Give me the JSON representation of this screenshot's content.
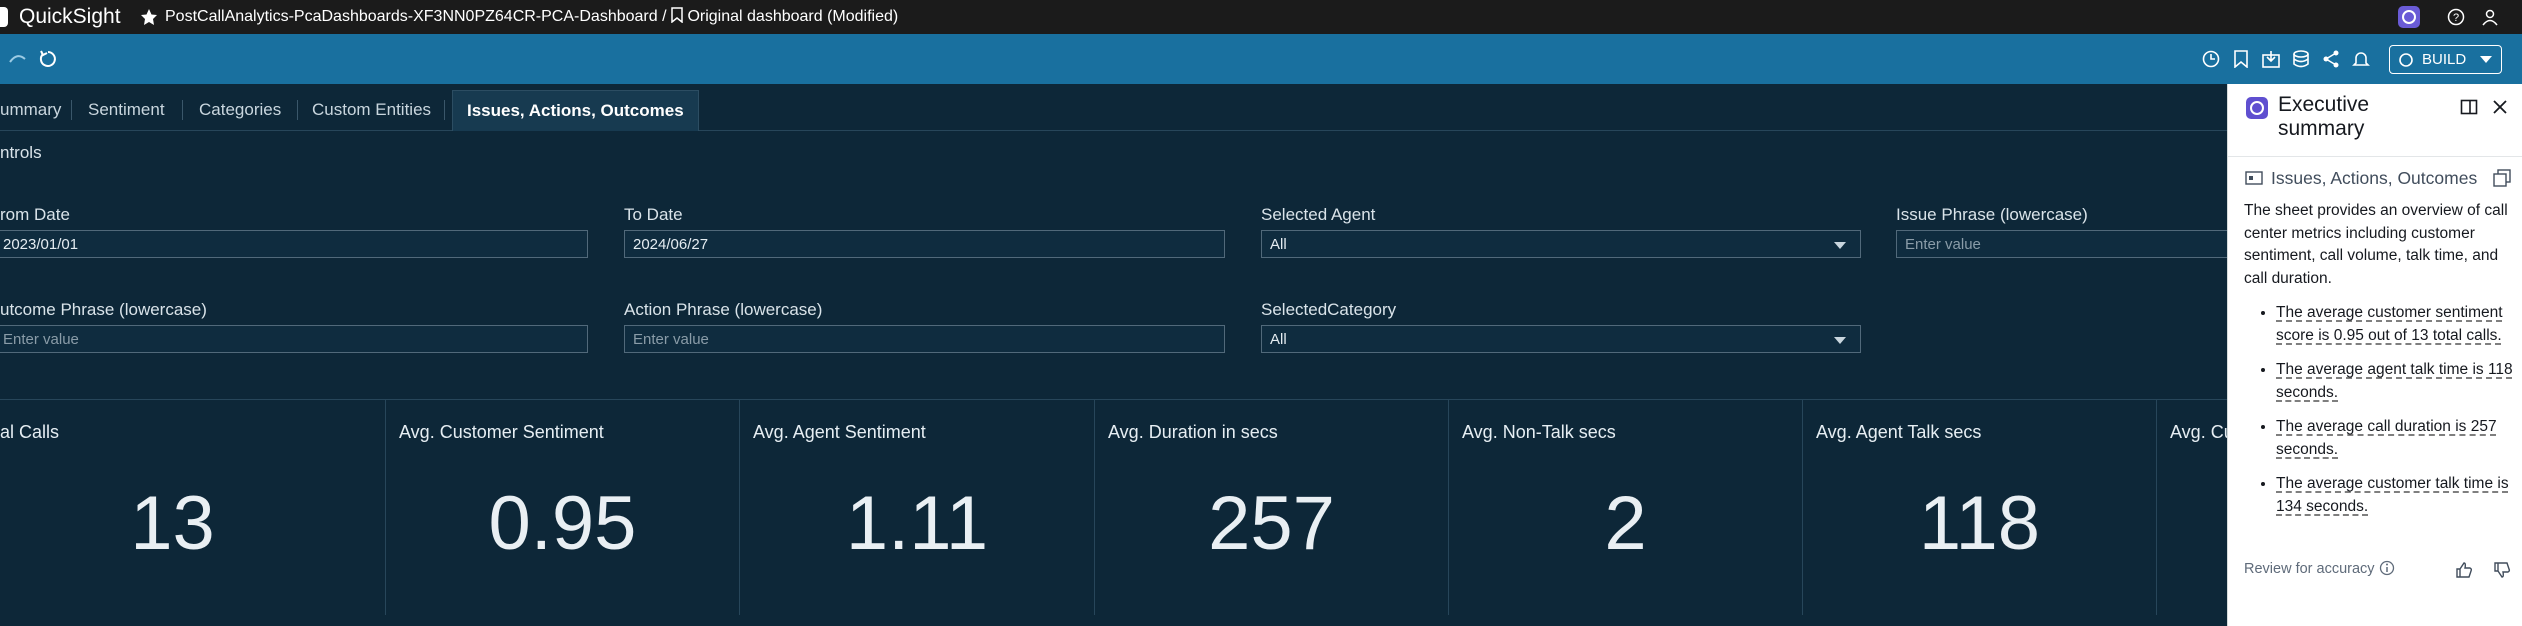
{
  "top_bar": {
    "app_name": "QuickSight",
    "dashboard": "PostCallAnalytics-PcaDashboards-XF3NN0PZ64CR-PCA-Dashboard",
    "separator": "/",
    "sheet": "Original dashboard (Modified)"
  },
  "toolbar": {
    "build_button": "BUILD"
  },
  "tabs": [
    "ummary",
    "Sentiment",
    "Categories",
    "Custom Entities",
    "Issues, Actions, Outcomes"
  ],
  "controls": {
    "title": "ntrols",
    "filters": [
      {
        "label": "rom Date",
        "value": "2023/01/01"
      },
      {
        "label": "To Date",
        "value": "2024/06/27"
      },
      {
        "label": "Selected Agent",
        "value": "All"
      },
      {
        "label": "Issue Phrase (lowercase)",
        "placeholder": "Enter value"
      },
      {
        "label": "utcome Phrase (lowercase)",
        "placeholder": "Enter value"
      },
      {
        "label": "Action Phrase (lowercase)",
        "placeholder": "Enter value"
      },
      {
        "label": "SelectedCategory",
        "value": "All"
      }
    ]
  },
  "kpis": [
    {
      "title": "al Calls",
      "value": 13
    },
    {
      "title": "Avg. Customer Sentiment",
      "value": 0.95
    },
    {
      "title": "Avg. Agent Sentiment",
      "value": 1.11
    },
    {
      "title": "Avg. Duration in secs",
      "value": 257
    },
    {
      "title": "Avg. Non-Talk secs",
      "value": 2
    },
    {
      "title": "Avg. Agent Talk secs",
      "value": 118
    },
    {
      "title": "Avg. Cu"
    }
  ],
  "summary_panel": {
    "title": "Executive summary",
    "sheet": "Issues, Actions, Outcomes",
    "intro": "The sheet provides an overview of call center metrics including customer sentiment, call volume, talk time, and call duration.",
    "bullets": [
      "The average customer sentiment score is 0.95 out of 13 total calls.",
      "The average agent talk time is 118 seconds.",
      "The average call duration is 257 seconds.",
      "The average customer talk time is 134 seconds."
    ],
    "footer": "Review for accuracy"
  }
}
